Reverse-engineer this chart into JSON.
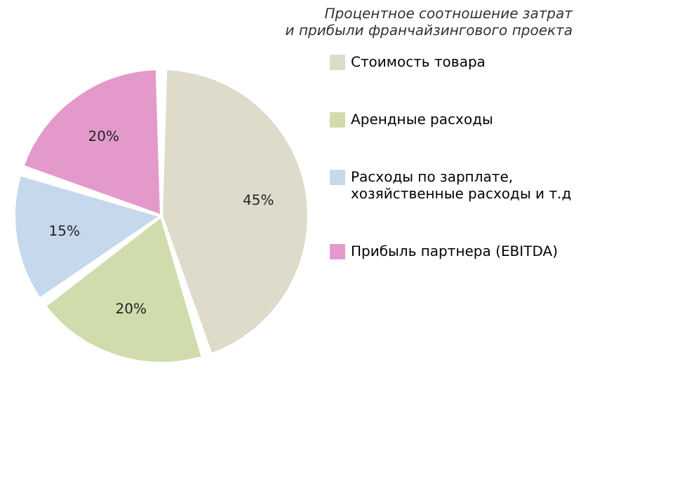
{
  "chart_data": {
    "type": "pie",
    "title": "Процентное соотношение затрат и прибыли франчайзингового проекта",
    "categories": [
      "Стоимость товара",
      "Арендные расходы",
      "Расходы по зарплате, хозяйственные расходы и т.д",
      "Прибыль партнера (EBITDA)"
    ],
    "values": [
      45,
      20,
      15,
      20
    ],
    "colors": [
      "#dedbcb",
      "#d0dcac",
      "#c6d8ec",
      "#e39acb"
    ],
    "value_labels": [
      "45%",
      "20%",
      "15%",
      "20%"
    ],
    "legend": "right"
  }
}
